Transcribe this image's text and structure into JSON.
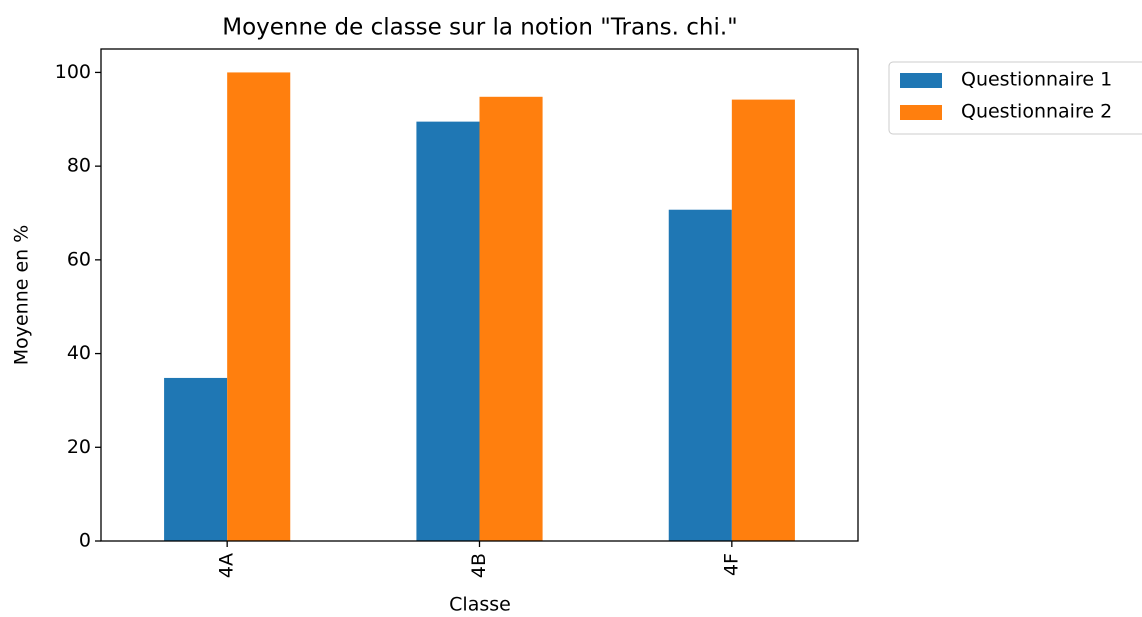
{
  "chart_data": {
    "type": "bar",
    "title": "Moyenne de classe sur la notion \"Trans. chi.\"",
    "x_label": "Classe",
    "y_label": "Moyenne en %",
    "categories": [
      "4A",
      "4B",
      "4F"
    ],
    "series": [
      {
        "name": "Questionnaire 1",
        "color": "#1f77b4",
        "values": [
          34.8,
          89.5,
          70.7
        ]
      },
      {
        "name": "Questionnaire 2",
        "color": "#ff7f0e",
        "values": [
          100,
          94.8,
          94.2
        ]
      }
    ],
    "ylim": [
      0,
      105
    ],
    "yticks": [
      0,
      20,
      40,
      60,
      80,
      100
    ],
    "legend": "outside upper right"
  }
}
